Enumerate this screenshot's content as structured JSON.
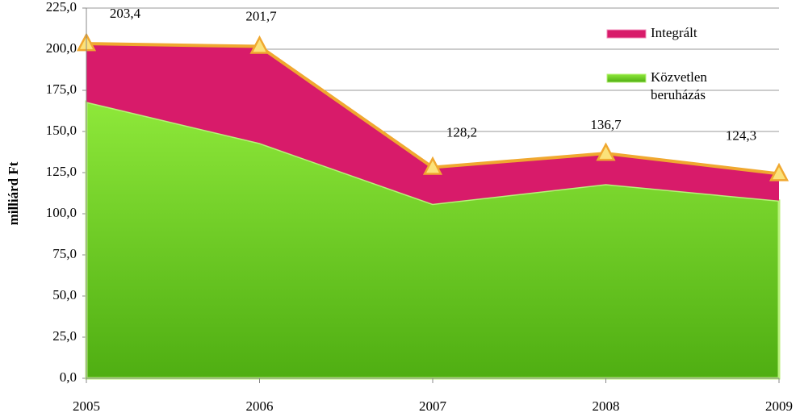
{
  "chart_data": {
    "type": "stacked_area",
    "y_label": "milliárd Ft",
    "categories": [
      "2005",
      "2006",
      "2007",
      "2008",
      "2009"
    ],
    "series": [
      {
        "name": "Közvetlen beruházás",
        "color": "#6fd11f",
        "values": [
          168,
          143,
          106,
          118,
          108
        ]
      },
      {
        "name": "Integrált",
        "color": "#d81b6a",
        "values": [
          35.4,
          58.7,
          22.2,
          18.7,
          16.3
        ]
      }
    ],
    "total": {
      "color": "#f0a830",
      "values": [
        203.4,
        201.7,
        128.2,
        136.7,
        124.3
      ],
      "value_labels": [
        "203,4",
        "201,7",
        "128,2",
        "136,7",
        "124,3"
      ]
    },
    "ylim": [
      0,
      225
    ],
    "yticks": [
      {
        "value": 0,
        "label": "0,0"
      },
      {
        "value": 25,
        "label": "25,0"
      },
      {
        "value": 50,
        "label": "50,0"
      },
      {
        "value": 75,
        "label": "75,0"
      },
      {
        "value": 100,
        "label": "100,0"
      },
      {
        "value": 125,
        "label": "125,0"
      },
      {
        "value": 150,
        "label": "150,0"
      },
      {
        "value": 175,
        "label": "175,0"
      },
      {
        "value": 200,
        "label": "200,0"
      },
      {
        "value": 225,
        "label": "225,0"
      }
    ],
    "grid": true
  }
}
